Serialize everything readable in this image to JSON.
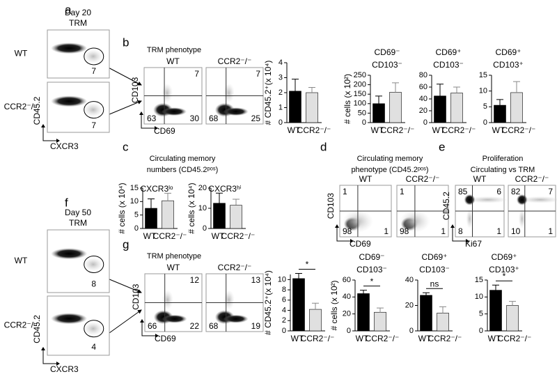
{
  "panel_letters": [
    "a",
    "b",
    "c",
    "d",
    "e",
    "f",
    "g"
  ],
  "gates": [
    {
      "title_lines": [
        "Day 20",
        "TRM"
      ],
      "y_axis": "CD45.2",
      "x_axis": "CXCR3",
      "rows": [
        {
          "label": "WT",
          "gate": 7
        },
        {
          "label": "CCR2⁻/⁻",
          "gate": 7
        }
      ]
    },
    {
      "title_lines": [
        "Day 50",
        "TRM"
      ],
      "y_axis": "CD45.2",
      "x_axis": "CXCR3",
      "rows": [
        {
          "label": "WT",
          "gate": 8
        },
        {
          "label": "CCR2⁻/⁻",
          "gate": 4
        }
      ]
    }
  ],
  "quadrant_panels": [
    {
      "title_lines": [
        "TRM phenotype"
      ],
      "y_axis": "CD103",
      "x_axis": "CD69",
      "plots": [
        {
          "label": "WT",
          "quadrants": {
            "ur": 7,
            "ll": 63,
            "lr": 30
          }
        },
        {
          "label": "CCR2⁻/⁻",
          "quadrants": {
            "ur": 7,
            "ll": 68,
            "lr": 25
          }
        }
      ]
    },
    {
      "title_lines": [
        "Circulating memory",
        "phenotype (CD45.2ᵖᵒˢ)"
      ],
      "y_axis": "CD103",
      "x_axis": "CD69",
      "plots": [
        {
          "label": "WT",
          "quadrants": {
            "ul": 1,
            "ll": 98,
            "lr": 1
          }
        },
        {
          "label": "CCR2⁻/⁻",
          "quadrants": {
            "ul": 1,
            "ll": 98,
            "lr": 1
          }
        }
      ]
    },
    {
      "title_lines": [
        "Proliferation",
        "Circulating vs TRM"
      ],
      "y_axis": "CD45.2",
      "x_axis": "Ki67",
      "plots": [
        {
          "label": "WT",
          "quadrants": {
            "ul": 85,
            "ur": 6,
            "ll": 8,
            "lr": 1
          }
        },
        {
          "label": "CCR2⁻/⁻",
          "quadrants": {
            "ul": 82,
            "ur": 7,
            "ll": 10,
            "lr": 1
          }
        }
      ]
    },
    {
      "title_lines": [
        "TRM phenotype"
      ],
      "y_axis": "CD103",
      "x_axis": "CD69",
      "plots": [
        {
          "label": "WT",
          "quadrants": {
            "ur": 12,
            "ll": 66,
            "lr": 22
          }
        },
        {
          "label": "CCR2⁻/⁻",
          "quadrants": {
            "ur": 13,
            "ll": 68,
            "lr": 19
          }
        }
      ]
    }
  ],
  "circulating_title_lines": [
    "Circulating memory",
    "numbers (CD45.2ᵖᵒˢ)"
  ],
  "chart_data": [
    {
      "type": "bar",
      "ylabel": "# CD45.2⁺(x 10⁴)",
      "categories": [
        "WT",
        "CCR2⁻/⁻"
      ],
      "colors": [
        "#000000",
        "#e0e0e0"
      ],
      "values": [
        2.1,
        2.0
      ],
      "errors": [
        0.8,
        0.35
      ],
      "ylim": [
        0,
        4
      ],
      "yticks": [
        0,
        1,
        2,
        3,
        4
      ]
    },
    {
      "type": "bar",
      "title_lines": [
        "CD69⁻",
        "CD103⁻"
      ],
      "ylabel": "# cells (x 10²)",
      "categories": [
        "WT",
        "CCR2⁻/⁻"
      ],
      "colors": [
        "#000000",
        "#e0e0e0"
      ],
      "values": [
        100,
        160
      ],
      "errors": [
        40,
        50
      ],
      "ylim": [
        0,
        250
      ],
      "yticks": [
        0,
        50,
        100,
        150,
        200,
        250
      ]
    },
    {
      "type": "bar",
      "title_lines": [
        "CD69⁺",
        "CD103⁻"
      ],
      "categories": [
        "WT",
        "CCR2⁻/⁻"
      ],
      "colors": [
        "#000000",
        "#e0e0e0"
      ],
      "values": [
        45,
        50
      ],
      "errors": [
        20,
        10
      ],
      "ylim": [
        0,
        80
      ],
      "yticks": [
        0,
        20,
        40,
        60,
        80
      ]
    },
    {
      "type": "bar",
      "title_lines": [
        "CD69⁺",
        "CD103⁺"
      ],
      "categories": [
        "WT",
        "CCR2⁻/⁻"
      ],
      "colors": [
        "#000000",
        "#e0e0e0"
      ],
      "values": [
        5.5,
        9.5
      ],
      "errors": [
        1.8,
        3.5
      ],
      "ylim": [
        0,
        15
      ],
      "yticks": [
        0,
        5,
        10,
        15
      ]
    },
    {
      "type": "bar",
      "title_lines": [
        "CXCR3ˡᵒ"
      ],
      "ylabel": "# cells (x 10⁴)",
      "categories": [
        "WT",
        "CCR2⁻/⁻"
      ],
      "colors": [
        "#000000",
        "#e0e0e0"
      ],
      "values": [
        7.5,
        10.3
      ],
      "errors": [
        3.5,
        2.8
      ],
      "ylim": [
        0,
        15
      ],
      "yticks": [
        0,
        5,
        10,
        15
      ]
    },
    {
      "type": "bar",
      "title_lines": [
        "CXCR3ʰⁱ"
      ],
      "ylabel": "# cells (x 10⁴)",
      "categories": [
        "WT",
        "CCR2⁻/⁻"
      ],
      "colors": [
        "#000000",
        "#e0e0e0"
      ],
      "values": [
        12.5,
        11.5
      ],
      "errors": [
        5,
        3
      ],
      "ylim": [
        0,
        20
      ],
      "yticks": [
        0,
        10,
        20
      ]
    },
    {
      "type": "bar",
      "ylabel": "# CD45.2⁺(x 10⁴)",
      "categories": [
        "WT",
        "CCR2⁻/⁻"
      ],
      "colors": [
        "#000000",
        "#e0e0e0"
      ],
      "values": [
        10.2,
        4.2
      ],
      "errors": [
        1,
        1.2
      ],
      "ylim": [
        0,
        11
      ],
      "yticks": [
        0,
        2,
        4,
        6,
        8,
        10
      ],
      "significance": "*"
    },
    {
      "type": "bar",
      "title_lines": [
        "CD69⁻",
        "CD103⁻"
      ],
      "ylabel": "# cells (x 10²)",
      "categories": [
        "WT",
        "CCR2⁻/⁻"
      ],
      "colors": [
        "#000000",
        "#e0e0e0"
      ],
      "values": [
        44,
        22
      ],
      "errors": [
        4,
        5
      ],
      "ylim": [
        0,
        60
      ],
      "yticks": [
        0,
        20,
        40,
        60
      ],
      "significance": "*"
    },
    {
      "type": "bar",
      "title_lines": [
        "CD69⁺",
        "CD103⁻"
      ],
      "categories": [
        "WT",
        "CCR2⁻/⁻"
      ],
      "colors": [
        "#000000",
        "#e0e0e0"
      ],
      "values": [
        28,
        14
      ],
      "errors": [
        2,
        5
      ],
      "ylim": [
        0,
        40
      ],
      "yticks": [
        0,
        20,
        40
      ],
      "significance": "ns"
    },
    {
      "type": "bar",
      "title_lines": [
        "CD69⁺",
        "CD103⁺"
      ],
      "categories": [
        "WT",
        "CCR2⁻/⁻"
      ],
      "colors": [
        "#000000",
        "#e0e0e0"
      ],
      "values": [
        12,
        7.5
      ],
      "errors": [
        1.5,
        1.2
      ],
      "ylim": [
        0,
        15
      ],
      "yticks": [
        0,
        5,
        10,
        15
      ],
      "significance": "*"
    }
  ]
}
